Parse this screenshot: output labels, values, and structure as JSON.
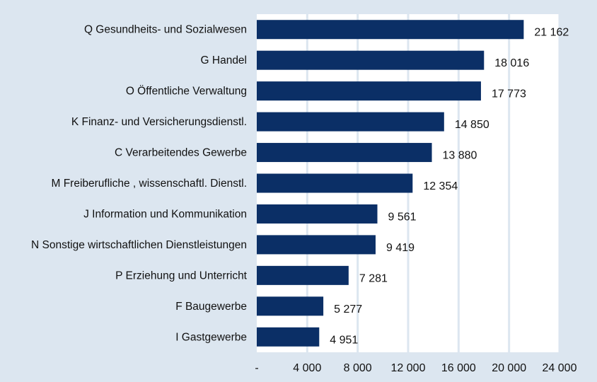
{
  "chart_data": {
    "type": "bar",
    "orientation": "horizontal",
    "categories": [
      "Q Gesundheits- und Sozialwesen",
      "G Handel",
      "O Öffentliche Verwaltung",
      "K Finanz- und Versicherungsdienstl.",
      "C Verarbeitendes Gewerbe",
      "M Freiberufliche , wissenschaftl. Dienstl.",
      "J Information und Kommunikation",
      "N Sonstige wirtschaftlichen Dienstleistungen",
      "P Erziehung und Unterricht",
      "F Baugewerbe",
      "I Gastgewerbe"
    ],
    "values": [
      21162,
      18016,
      17773,
      14850,
      13880,
      12354,
      9561,
      9419,
      7281,
      5277,
      4951
    ],
    "data_labels": [
      "21 162",
      "18 016",
      "17 773",
      "14 850",
      "13 880",
      "12 354",
      "9 561",
      "9 419",
      "7 281",
      "5 277",
      "4 951"
    ],
    "xlim": [
      0,
      24000
    ],
    "x_ticks": [
      0,
      4000,
      8000,
      12000,
      16000,
      20000,
      24000
    ],
    "x_tick_labels": [
      "-",
      "4 000",
      "8 000",
      "12 000",
      "16 000",
      "20 000",
      "24 000"
    ],
    "title": "",
    "xlabel": "",
    "ylabel": "",
    "grid": "vertical",
    "legend": "none",
    "colors": {
      "bar": "#0b2f66",
      "background": "#dce6f0",
      "plot_area": "#ffffff",
      "grid": "#dce6f0"
    }
  }
}
